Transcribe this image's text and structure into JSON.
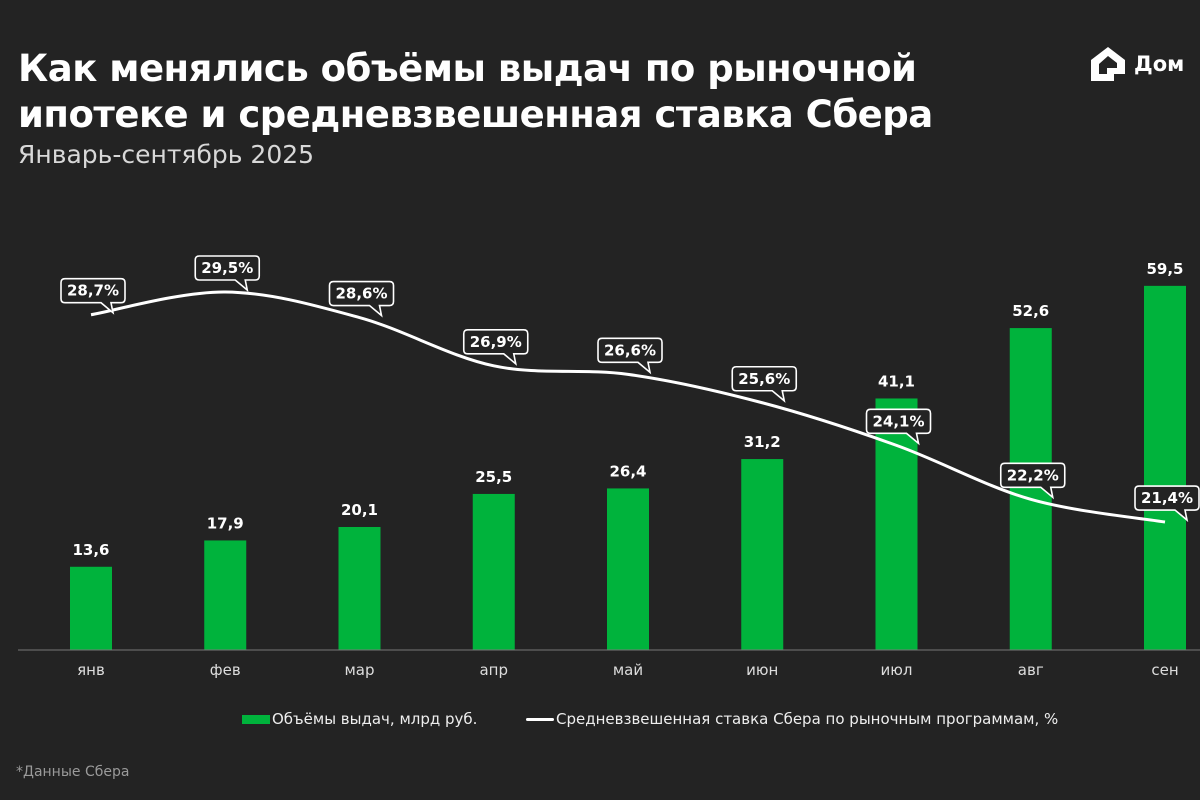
{
  "title_line1": "Как менялись объёмы выдач по рыночной",
  "title_line2": "ипотеке и средневзвешенная ставка Сбера",
  "subtitle": "Январь-сентябрь 2025",
  "logo": {
    "text": "Дом",
    "icon": "house-logo-icon"
  },
  "footnote": "*Данные Сбера",
  "colors": {
    "background": "#232323",
    "bars": "#00b33c",
    "line": "#ffffff"
  },
  "chart_data": {
    "type": "bar+line",
    "categories": [
      "янв",
      "фев",
      "мар",
      "апр",
      "май",
      "июн",
      "июл",
      "авг",
      "сен"
    ],
    "series": [
      {
        "name": "Объёмы выдач, млрд руб.",
        "type": "bar",
        "values": [
          13.6,
          17.9,
          20.1,
          25.5,
          26.4,
          31.2,
          41.1,
          52.6,
          59.5
        ],
        "labels": [
          "13,6",
          "17,9",
          "20,1",
          "25,5",
          "26,4",
          "31,2",
          "41,1",
          "52,6",
          "59,5"
        ]
      },
      {
        "name": "Средневзвешенная ставка Сбера по рыночным программам, %",
        "type": "line",
        "values": [
          28.7,
          29.5,
          28.6,
          26.9,
          26.6,
          25.6,
          24.1,
          22.2,
          21.4
        ],
        "labels": [
          "28,7%",
          "29,5%",
          "28,6%",
          "26,9%",
          "26,6%",
          "25,6%",
          "24,1%",
          "22,2%",
          "21,4%"
        ]
      }
    ],
    "legend": "bottom",
    "grid": false
  }
}
